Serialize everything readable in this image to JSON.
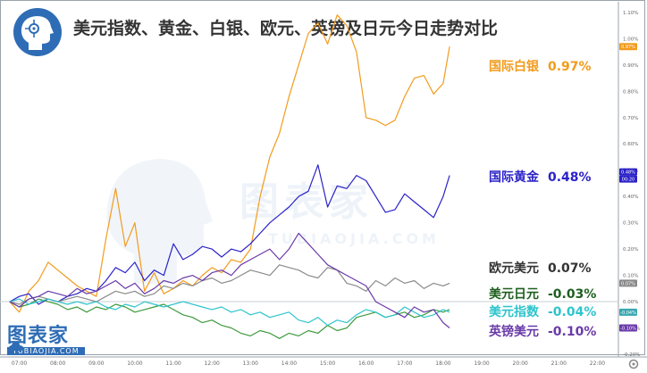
{
  "title": "美元指数、黄金、白银、欧元、英镑及日元今日走势对比",
  "logo": {
    "cn": "图表家",
    "en": "TUBIAOJIA.COM"
  },
  "chart_data": {
    "type": "line",
    "title": "美元指数、黄金、白银、欧元、英镑及日元今日走势对比",
    "xlabel": "",
    "ylabel": "",
    "x_ticks": [
      "07:00",
      "08:00",
      "09:00",
      "10:00",
      "11:00",
      "12:00",
      "13:00",
      "14:00",
      "15:00",
      "16:00",
      "17:00",
      "18:00",
      "19:00",
      "20:00",
      "21:00",
      "22:00"
    ],
    "y_ticks": [
      "1.10%",
      "1.00%",
      "0.90%",
      "0.80%",
      "0.70%",
      "0.60%",
      "0.50%",
      "0.40%",
      "0.30%",
      "0.20%",
      "0.10%",
      "0.00%",
      "-0.10%",
      "-0.20%"
    ],
    "ylim": [
      -0.2,
      1.12
    ],
    "grid": false,
    "price_tags": [
      "0.97%",
      "0.48%",
      "00:20",
      "0.07%",
      "-0.04%",
      "-0.10%"
    ],
    "series": [
      {
        "name": "国际白银",
        "value_label": "0.97%",
        "color": "#f29b1c",
        "x": [
          "06:45",
          "07:00",
          "07:15",
          "07:30",
          "07:45",
          "08:00",
          "08:15",
          "08:30",
          "08:45",
          "09:00",
          "09:15",
          "09:30",
          "09:45",
          "10:00",
          "10:15",
          "10:30",
          "10:45",
          "11:00",
          "11:15",
          "11:30",
          "11:45",
          "12:00",
          "12:15",
          "12:30",
          "12:45",
          "13:00",
          "13:15",
          "13:30",
          "13:45",
          "14:00",
          "14:15",
          "14:30",
          "14:45",
          "15:00",
          "15:15",
          "15:30",
          "15:45",
          "16:00",
          "16:15",
          "16:30",
          "16:45",
          "17:00",
          "17:15",
          "17:30",
          "17:45",
          "18:00",
          "18:10"
        ],
        "y": [
          0.0,
          -0.04,
          0.04,
          0.08,
          0.15,
          0.12,
          0.09,
          0.06,
          0.04,
          0.02,
          0.24,
          0.43,
          0.21,
          0.3,
          0.04,
          0.11,
          0.03,
          0.05,
          0.08,
          0.06,
          0.1,
          0.13,
          0.11,
          0.16,
          0.15,
          0.2,
          0.4,
          0.55,
          0.64,
          0.78,
          0.9,
          1.02,
          1.06,
          0.98,
          1.09,
          1.05,
          0.95,
          0.7,
          0.69,
          0.67,
          0.69,
          0.78,
          0.85,
          0.86,
          0.79,
          0.83,
          0.97
        ]
      },
      {
        "name": "国际黄金",
        "value_label": "0.48%",
        "color": "#2b22c8",
        "x": [
          "06:45",
          "07:00",
          "07:15",
          "07:30",
          "07:45",
          "08:00",
          "08:15",
          "08:30",
          "08:45",
          "09:00",
          "09:15",
          "09:30",
          "09:45",
          "10:00",
          "10:15",
          "10:30",
          "10:45",
          "11:00",
          "11:15",
          "11:30",
          "11:45",
          "12:00",
          "12:15",
          "12:30",
          "12:45",
          "13:00",
          "13:15",
          "13:30",
          "13:45",
          "14:00",
          "14:15",
          "14:30",
          "14:45",
          "15:00",
          "15:15",
          "15:30",
          "15:45",
          "16:00",
          "16:15",
          "16:30",
          "16:45",
          "17:00",
          "17:15",
          "17:30",
          "17:45",
          "18:00",
          "18:10"
        ],
        "y": [
          0.0,
          0.02,
          0.03,
          -0.01,
          0.01,
          0.0,
          0.02,
          0.03,
          0.05,
          0.04,
          0.08,
          0.13,
          0.11,
          0.15,
          0.08,
          0.12,
          0.1,
          0.22,
          0.16,
          0.18,
          0.21,
          0.2,
          0.17,
          0.2,
          0.19,
          0.22,
          0.26,
          0.3,
          0.33,
          0.36,
          0.4,
          0.42,
          0.52,
          0.36,
          0.44,
          0.43,
          0.48,
          0.46,
          0.4,
          0.34,
          0.35,
          0.41,
          0.38,
          0.35,
          0.32,
          0.4,
          0.48
        ]
      },
      {
        "name": "欧元美元",
        "value_label": "0.07%",
        "color": "#8a8a8a",
        "x": [
          "06:45",
          "07:00",
          "07:15",
          "07:30",
          "07:45",
          "08:00",
          "08:15",
          "08:30",
          "08:45",
          "09:00",
          "09:15",
          "09:30",
          "09:45",
          "10:00",
          "10:15",
          "10:30",
          "10:45",
          "11:00",
          "11:15",
          "11:30",
          "11:45",
          "12:00",
          "12:15",
          "12:30",
          "12:45",
          "13:00",
          "13:15",
          "13:30",
          "13:45",
          "14:00",
          "14:15",
          "14:30",
          "14:45",
          "15:00",
          "15:15",
          "15:30",
          "15:45",
          "16:00",
          "16:15",
          "16:30",
          "16:45",
          "17:00",
          "17:15",
          "17:30",
          "17:45",
          "18:00",
          "18:10"
        ],
        "y": [
          0.0,
          -0.01,
          0.01,
          0.02,
          0.01,
          0.0,
          0.01,
          0.02,
          0.01,
          0.0,
          0.02,
          0.04,
          0.03,
          0.04,
          0.02,
          0.03,
          0.06,
          0.05,
          0.07,
          0.06,
          0.08,
          0.09,
          0.07,
          0.08,
          0.1,
          0.12,
          0.11,
          0.1,
          0.14,
          0.13,
          0.12,
          0.1,
          0.09,
          0.13,
          0.12,
          0.07,
          0.06,
          0.04,
          0.08,
          0.06,
          0.09,
          0.07,
          0.08,
          0.05,
          0.07,
          0.06,
          0.07
        ]
      },
      {
        "name": "美元日元",
        "value_label": "-0.03%",
        "color": "#3d9a3d",
        "x": [
          "06:45",
          "07:00",
          "07:15",
          "07:30",
          "07:45",
          "08:00",
          "08:15",
          "08:30",
          "08:45",
          "09:00",
          "09:15",
          "09:30",
          "09:45",
          "10:00",
          "10:15",
          "10:30",
          "10:45",
          "11:00",
          "11:15",
          "11:30",
          "11:45",
          "12:00",
          "12:15",
          "12:30",
          "12:45",
          "13:00",
          "13:15",
          "13:30",
          "13:45",
          "14:00",
          "14:15",
          "14:30",
          "14:45",
          "15:00",
          "15:15",
          "15:30",
          "15:45",
          "16:00",
          "16:15",
          "16:30",
          "16:45",
          "17:00",
          "17:15",
          "17:30",
          "17:45",
          "18:00",
          "18:10"
        ],
        "y": [
          0.0,
          -0.02,
          -0.01,
          0.01,
          0.0,
          -0.01,
          -0.03,
          -0.02,
          -0.04,
          -0.02,
          -0.03,
          -0.01,
          -0.02,
          -0.04,
          -0.03,
          -0.02,
          -0.01,
          -0.03,
          -0.05,
          -0.06,
          -0.08,
          -0.07,
          -0.09,
          -0.1,
          -0.12,
          -0.13,
          -0.11,
          -0.12,
          -0.14,
          -0.12,
          -0.13,
          -0.11,
          -0.12,
          -0.09,
          -0.11,
          -0.1,
          -0.06,
          -0.05,
          -0.04,
          -0.06,
          -0.05,
          -0.04,
          -0.06,
          -0.05,
          -0.03,
          -0.04,
          -0.03
        ]
      },
      {
        "name": "美元指数",
        "value_label": "-0.04%",
        "color": "#2ec4cc",
        "x": [
          "06:45",
          "07:00",
          "07:15",
          "07:30",
          "07:45",
          "08:00",
          "08:15",
          "08:30",
          "08:45",
          "09:00",
          "09:15",
          "09:30",
          "09:45",
          "10:00",
          "10:15",
          "10:30",
          "10:45",
          "11:00",
          "11:15",
          "11:30",
          "11:45",
          "12:00",
          "12:15",
          "12:30",
          "12:45",
          "13:00",
          "13:15",
          "13:30",
          "13:45",
          "14:00",
          "14:15",
          "14:30",
          "14:45",
          "15:00",
          "15:15",
          "15:30",
          "15:45",
          "16:00",
          "16:15",
          "16:30",
          "16:45",
          "17:00",
          "17:15",
          "17:30",
          "17:45",
          "18:00",
          "18:10"
        ],
        "y": [
          0.0,
          0.01,
          -0.01,
          0.0,
          0.01,
          0.0,
          -0.01,
          0.0,
          -0.01,
          0.0,
          -0.02,
          -0.03,
          -0.01,
          -0.02,
          0.0,
          -0.01,
          -0.02,
          -0.01,
          0.0,
          -0.01,
          -0.02,
          -0.03,
          -0.02,
          -0.04,
          -0.03,
          -0.05,
          -0.04,
          -0.06,
          -0.05,
          -0.04,
          -0.07,
          -0.08,
          -0.06,
          -0.09,
          -0.07,
          -0.08,
          -0.05,
          -0.03,
          -0.04,
          -0.06,
          -0.05,
          -0.02,
          -0.04,
          -0.06,
          -0.05,
          -0.03,
          -0.04
        ]
      },
      {
        "name": "英镑美元",
        "value_label": "-0.10%",
        "color": "#6a3aa8",
        "x": [
          "06:45",
          "07:00",
          "07:15",
          "07:30",
          "07:45",
          "08:00",
          "08:15",
          "08:30",
          "08:45",
          "09:00",
          "09:15",
          "09:30",
          "09:45",
          "10:00",
          "10:15",
          "10:30",
          "10:45",
          "11:00",
          "11:15",
          "11:30",
          "11:45",
          "12:00",
          "12:15",
          "12:30",
          "12:45",
          "13:00",
          "13:15",
          "13:30",
          "13:45",
          "14:00",
          "14:15",
          "14:30",
          "14:45",
          "15:00",
          "15:15",
          "15:30",
          "15:45",
          "16:00",
          "16:15",
          "16:30",
          "16:45",
          "17:00",
          "17:15",
          "17:30",
          "17:45",
          "18:00",
          "18:10"
        ],
        "y": [
          0.0,
          -0.02,
          0.01,
          0.02,
          0.04,
          0.03,
          0.02,
          0.05,
          0.03,
          0.04,
          0.06,
          0.08,
          0.05,
          0.07,
          0.03,
          0.05,
          0.08,
          0.07,
          0.09,
          0.1,
          0.08,
          0.11,
          0.12,
          0.1,
          0.14,
          0.16,
          0.18,
          0.2,
          0.16,
          0.2,
          0.26,
          0.22,
          0.18,
          0.14,
          0.12,
          0.1,
          0.08,
          0.06,
          0.0,
          -0.02,
          -0.04,
          -0.06,
          -0.02,
          -0.04,
          -0.03,
          -0.08,
          -0.1
        ]
      }
    ]
  }
}
